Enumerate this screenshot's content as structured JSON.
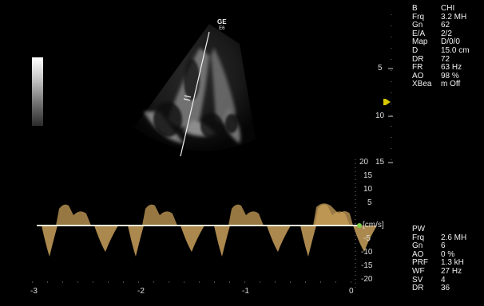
{
  "probe": {
    "brand": "GE",
    "sub": "E6"
  },
  "bmode_params": {
    "mode": "B",
    "mode_value": "CHI",
    "rows": [
      {
        "key": "Frq",
        "value": "3.2 MH"
      },
      {
        "key": "Gn",
        "value": "62"
      },
      {
        "key": "E/A",
        "value": "2/2"
      },
      {
        "key": "Map",
        "value": "D/0/0"
      },
      {
        "key": "D",
        "value": "15.0 cm"
      },
      {
        "key": "DR",
        "value": "72"
      },
      {
        "key": "FR",
        "value": "63 Hz"
      },
      {
        "key": "AO",
        "value": "98 %"
      },
      {
        "key": "XBea",
        "value": "m Off"
      }
    ]
  },
  "pw_params": {
    "mode": "PW",
    "rows": [
      {
        "key": "Frq",
        "value": "2.6 MH"
      },
      {
        "key": "Gn",
        "value": "6"
      },
      {
        "key": "AO",
        "value": "0 %"
      },
      {
        "key": "PRF",
        "value": "1.3 kH"
      },
      {
        "key": "WF",
        "value": "27 Hz"
      },
      {
        "key": "SV",
        "value": "4"
      },
      {
        "key": "DR",
        "value": "36"
      }
    ]
  },
  "depth_scale": {
    "ticks": [
      "5",
      "10",
      "15"
    ]
  },
  "velocity_scale": {
    "unit": "[cm/s]",
    "ticks": [
      "20",
      "15",
      "10",
      "5",
      "-5",
      "-10",
      "-15",
      "-20"
    ]
  },
  "time_scale": {
    "ticks": [
      "-3",
      "-2",
      "-1",
      "0"
    ]
  },
  "colors": {
    "background": "#000000",
    "doppler_trace": "#c9a05a",
    "baseline": "#f2f2dc",
    "marker": "#d8c800",
    "baseline_dot": "#7ad04a"
  }
}
